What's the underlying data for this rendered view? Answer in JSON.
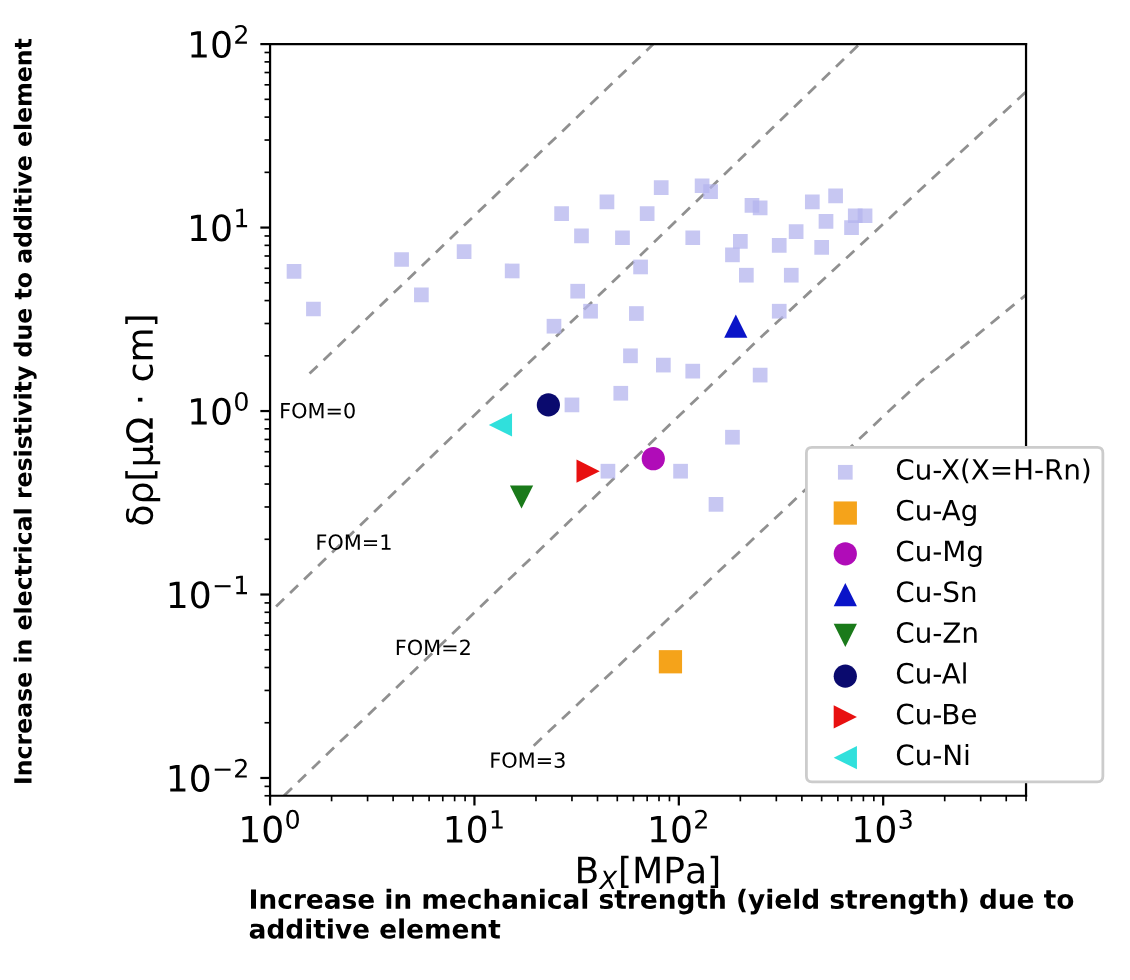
{
  "chart_data": {
    "type": "scatter",
    "xlabel": "B$_{X}$[MPa]",
    "ylabel": "δρ[μΩ · cm]",
    "log": "xy",
    "xlim": [
      1,
      5000
    ],
    "ylim": [
      0.008,
      100
    ],
    "xticks": [
      {
        "value": 1,
        "label": "10$^{0}$"
      },
      {
        "value": 10,
        "label": "10$^{1}$"
      },
      {
        "value": 100,
        "label": "10$^{2}$"
      },
      {
        "value": 1000,
        "label": "10$^{3}$"
      }
    ],
    "yticks": [
      {
        "value": 0.01,
        "label": "10$^{−2}$"
      },
      {
        "value": 0.1,
        "label": "10$^{−1}$"
      },
      {
        "value": 1,
        "label": "10$^{0}$"
      },
      {
        "value": 10,
        "label": "10$^{1}$"
      },
      {
        "value": 100,
        "label": "10$^{2}$"
      }
    ],
    "legend": "bottom right",
    "grid": false,
    "series": [
      {
        "name": "FOM=0",
        "type": "line",
        "line_style": "dashed",
        "color": "#909090",
        "x": [
          1.56,
          75
        ],
        "values": [
          1.6,
          100
        ]
      },
      {
        "name": "FOM=1",
        "type": "line",
        "line_style": "dashed",
        "color": "#909090",
        "x": [
          1.07,
          765
        ],
        "values": [
          0.086,
          100
        ]
      },
      {
        "name": "FOM=2",
        "type": "line",
        "line_style": "dashed",
        "color": "#909090",
        "x": [
          1.17,
          240,
          5000
        ],
        "values": [
          0.008,
          2.4,
          55
        ]
      },
      {
        "name": "FOM=3",
        "type": "line",
        "line_style": "dashed",
        "color": "#909090",
        "x": [
          19.5,
          1520,
          5000
        ],
        "values": [
          0.015,
          1.45,
          4.3
        ]
      },
      {
        "name": "Cu-X(X=H-Rn)",
        "marker": "square",
        "color": "#b4b4ee",
        "x": [
          1.31,
          1.63,
          4.4,
          5.5,
          8.9,
          15.3,
          26.7,
          33.4,
          44.5,
          53,
          70,
          82,
          130,
          143,
          117,
          65,
          32,
          37,
          24.5,
          62,
          58,
          84,
          117,
          250,
          200,
          183,
          228,
          214,
          310,
          375,
          450,
          525,
          585,
          700,
          355,
          310,
          250,
          730,
          500,
          815,
          30,
          52,
          45,
          102,
          183,
          152
        ],
        "values": [
          5.77,
          3.6,
          6.7,
          4.3,
          7.4,
          5.8,
          11.9,
          9.0,
          13.8,
          8.8,
          11.9,
          16.5,
          16.9,
          15.7,
          8.8,
          6.1,
          4.5,
          3.5,
          2.9,
          3.4,
          2.0,
          1.78,
          1.65,
          1.57,
          8.4,
          7.1,
          13.2,
          5.5,
          8.0,
          9.5,
          13.8,
          10.8,
          14.9,
          10.0,
          5.5,
          3.5,
          12.8,
          11.6,
          7.8,
          11.6,
          1.08,
          1.25,
          0.47,
          0.47,
          0.72,
          0.31
        ]
      },
      {
        "name": "Cu-Ag",
        "marker": "square",
        "color": "#f5a31a",
        "x": [
          91
        ],
        "values": [
          0.043
        ]
      },
      {
        "name": "Cu-Mg",
        "marker": "circle",
        "color": "#b00cb8",
        "x": [
          75
        ],
        "values": [
          0.55
        ]
      },
      {
        "name": "Cu-Sn",
        "marker": "triangle",
        "color": "#0a14c8",
        "x": [
          190
        ],
        "values": [
          2.9
        ]
      },
      {
        "name": "Cu-Zn",
        "marker": "triangle_down",
        "color": "#1a7a1a",
        "x": [
          17
        ],
        "values": [
          0.34
        ]
      },
      {
        "name": "Cu-Al",
        "marker": "circle",
        "color": "#0a0a6e",
        "x": [
          23
        ],
        "values": [
          1.08
        ]
      },
      {
        "name": "Cu-Be",
        "marker": "triangle_right",
        "color": "#e81010",
        "x": [
          36
        ],
        "values": [
          0.47
        ]
      },
      {
        "name": "Cu-Ni",
        "marker": "triangle_left",
        "color": "#30e0dc",
        "x": [
          13.4
        ],
        "values": [
          0.84
        ]
      }
    ],
    "annotations": [
      "Increase in electrical resistivity due to additive element",
      "Increase in mechanical strength (yield strength) due to additive element"
    ]
  }
}
